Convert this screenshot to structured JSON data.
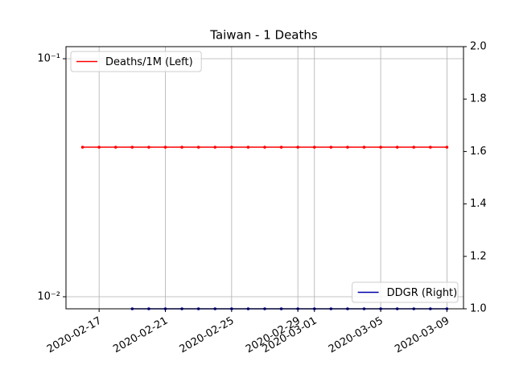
{
  "chart_data": {
    "type": "line",
    "title": "Taiwan - 1 Deaths",
    "x": [
      "2020-02-16",
      "2020-02-17",
      "2020-02-18",
      "2020-02-19",
      "2020-02-20",
      "2020-02-21",
      "2020-02-22",
      "2020-02-23",
      "2020-02-24",
      "2020-02-25",
      "2020-02-26",
      "2020-02-27",
      "2020-02-28",
      "2020-02-29",
      "2020-03-01",
      "2020-03-02",
      "2020-03-03",
      "2020-03-04",
      "2020-03-05",
      "2020-03-06",
      "2020-03-07",
      "2020-03-08",
      "2020-03-09"
    ],
    "series": [
      {
        "name": "Deaths/1M (Left)",
        "color": "#ff0000",
        "axis": "y",
        "values": [
          0.0425,
          0.0425,
          0.0425,
          0.0425,
          0.0425,
          0.0425,
          0.0425,
          0.0425,
          0.0425,
          0.0425,
          0.0425,
          0.0425,
          0.0425,
          0.0425,
          0.0425,
          0.0425,
          0.0425,
          0.0425,
          0.0425,
          0.0425,
          0.0425,
          0.0425,
          0.0425
        ]
      },
      {
        "name": "DDGR (Right)",
        "color": "#0000aa",
        "axis": "y2",
        "values": [
          null,
          null,
          null,
          1,
          1,
          1,
          1,
          1,
          1,
          1,
          1,
          1,
          1,
          1,
          1,
          1,
          1,
          1,
          1,
          1,
          1,
          1,
          1
        ]
      }
    ],
    "xlim": [
      "2020-02-15",
      "2020-03-10"
    ],
    "xticks": [
      "2020-02-17",
      "2020-02-21",
      "2020-02-25",
      "2020-02-29",
      "2020-03-01",
      "2020-03-05",
      "2020-03-09"
    ],
    "ylim": [
      0.0089,
      0.1124
    ],
    "log_y": true,
    "yticks": [
      {
        "value": 0.1,
        "label": "10⁻¹"
      },
      {
        "value": 0.01,
        "label": "10⁻²"
      }
    ],
    "y2lim": [
      1,
      2
    ],
    "y2ticks": [
      {
        "value": 1,
        "label": "1.0"
      },
      1.2,
      1.4,
      1.6,
      1.8,
      {
        "value": 2,
        "label": "2.0"
      }
    ],
    "grid": true,
    "legend": [
      {
        "series": 0,
        "loc": "upper left"
      },
      {
        "series": 1,
        "loc": "lower right"
      }
    ]
  }
}
